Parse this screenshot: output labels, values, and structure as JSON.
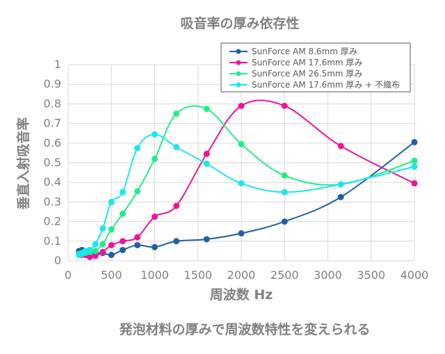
{
  "chart_data": {
    "type": "scatter",
    "title": "吸音率の厚み依存性",
    "caption": "発泡材料の厚みで周波数特性を変えられる",
    "xlabel": "周波数 Hz",
    "ylabel": "垂直入射吸音率",
    "xlim": [
      0,
      4000
    ],
    "ylim": [
      0,
      1
    ],
    "xticks": [
      "0",
      "500",
      "1000",
      "1500",
      "2000",
      "2500",
      "3000",
      "3500",
      "4000"
    ],
    "yticks": [
      "0",
      "0.1",
      "0.2",
      "0.3",
      "0.4",
      "0.5",
      "0.6",
      "0.7",
      "0.8",
      "0.9",
      "1"
    ],
    "grid": true,
    "legend_position": "top-right",
    "series": [
      {
        "name": "SunForce AM 8.6mm 厚み",
        "color": "#1f5fa5",
        "x": [
          125,
          160,
          200,
          250,
          315,
          400,
          500,
          630,
          800,
          1000,
          1250,
          1600,
          2000,
          2500,
          3150,
          4000
        ],
        "y": [
          0.05,
          0.055,
          0.05,
          0.045,
          0.04,
          0.04,
          0.03,
          0.055,
          0.08,
          0.07,
          0.1,
          0.11,
          0.14,
          0.2,
          0.325,
          0.605
        ]
      },
      {
        "name": "SunForce AM 17.6mm 厚み",
        "color": "#f0129a",
        "x": [
          125,
          160,
          200,
          250,
          315,
          400,
          500,
          630,
          800,
          1000,
          1250,
          1600,
          2000,
          2500,
          3150,
          4000
        ],
        "y": [
          0.035,
          0.03,
          0.03,
          0.02,
          0.025,
          0.045,
          0.08,
          0.1,
          0.12,
          0.225,
          0.28,
          0.545,
          0.79,
          0.79,
          0.585,
          0.395
        ]
      },
      {
        "name": "SunForce AM 26.5mm 厚み",
        "color": "#22ee88",
        "x": [
          125,
          160,
          200,
          250,
          315,
          400,
          500,
          630,
          800,
          1000,
          1250,
          1600,
          2000,
          2500,
          3150,
          4000
        ],
        "y": [
          0.035,
          0.04,
          0.04,
          0.045,
          0.05,
          0.085,
          0.16,
          0.24,
          0.355,
          0.52,
          0.75,
          0.775,
          0.595,
          0.435,
          0.39,
          0.51
        ]
      },
      {
        "name": "SunForce AM 17.6mm 厚み + 不織布",
        "color": "#1ce6f2",
        "x": [
          125,
          160,
          200,
          250,
          315,
          400,
          500,
          630,
          800,
          1000,
          1250,
          1600,
          2000,
          2500,
          3150,
          4000
        ],
        "y": [
          0.03,
          0.035,
          0.05,
          0.055,
          0.085,
          0.165,
          0.3,
          0.35,
          0.575,
          0.645,
          0.58,
          0.495,
          0.395,
          0.35,
          0.39,
          0.48
        ]
      }
    ]
  }
}
